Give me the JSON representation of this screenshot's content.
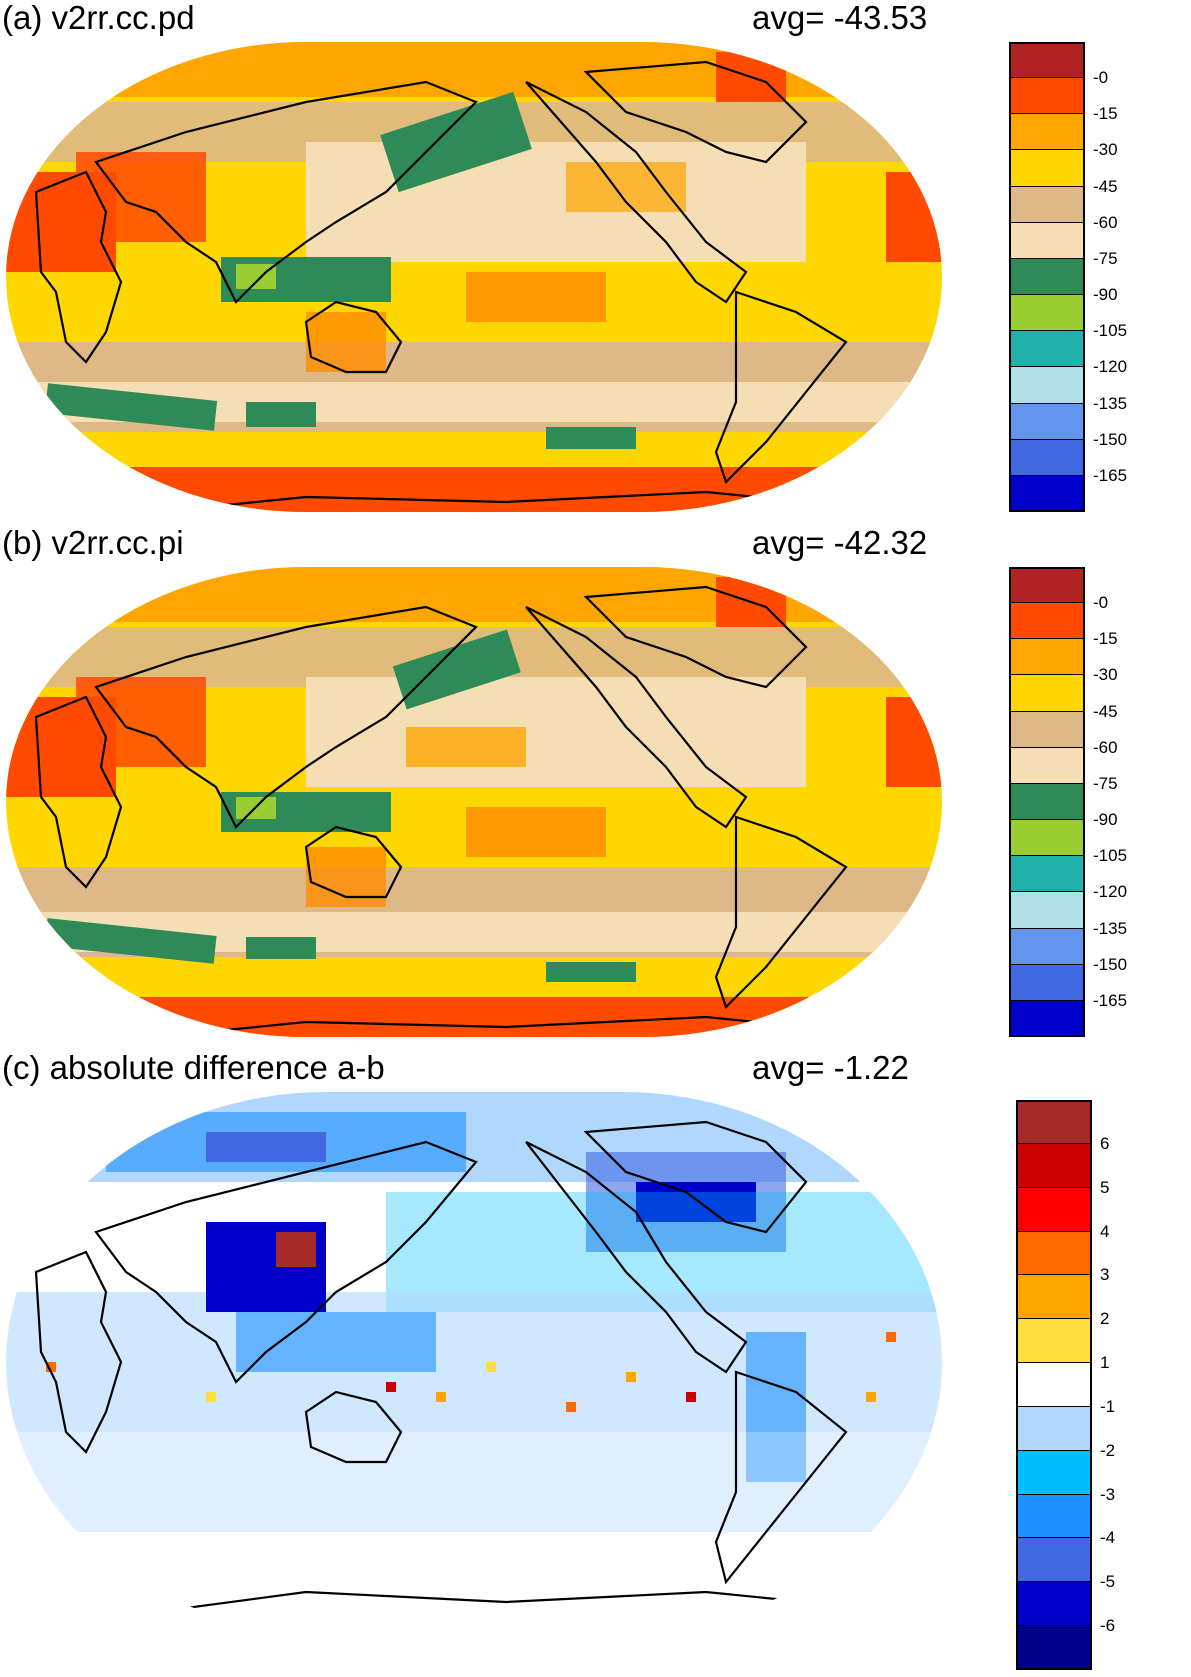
{
  "panels": [
    {
      "id": "a",
      "title": "(a) v2rr.cc.pd",
      "avg_text": "avg=  -43.53",
      "colorbar_labels": [
        "-0",
        "-15",
        "-30",
        "-45",
        "-60",
        "-75",
        "-90",
        "-105",
        "-120",
        "-135",
        "-150",
        "-165"
      ],
      "colors": [
        "#b22222",
        "#ff4a00",
        "#ffa500",
        "#ffd700",
        "#deb887",
        "#f5deb3",
        "#2e8b57",
        "#9acd32",
        "#20b2aa",
        "#b0e0e6",
        "#6495ed",
        "#4169e1",
        "#0000cd"
      ]
    },
    {
      "id": "b",
      "title": "(b) v2rr.cc.pi",
      "avg_text": "avg=  -42.32",
      "colorbar_labels": [
        "-0",
        "-15",
        "-30",
        "-45",
        "-60",
        "-75",
        "-90",
        "-105",
        "-120",
        "-135",
        "-150",
        "-165"
      ],
      "colors": [
        "#b22222",
        "#ff4a00",
        "#ffa500",
        "#ffd700",
        "#deb887",
        "#f5deb3",
        "#2e8b57",
        "#9acd32",
        "#20b2aa",
        "#b0e0e6",
        "#6495ed",
        "#4169e1",
        "#0000cd"
      ]
    },
    {
      "id": "c",
      "title": "(c) absolute difference a-b",
      "avg_text": "avg=   -1.22",
      "colorbar_labels": [
        "6",
        "5",
        "4",
        "3",
        "2",
        "1",
        "-1",
        "-2",
        "-3",
        "-4",
        "-5",
        "-6"
      ],
      "colors": [
        "#a52a2a",
        "#cd0000",
        "#ff0000",
        "#ff6a00",
        "#ffa500",
        "#ffde3c",
        "#ffffff",
        "#b0d8ff",
        "#00bfff",
        "#1e90ff",
        "#4169e1",
        "#0000cd",
        "#00008b"
      ]
    }
  ]
}
